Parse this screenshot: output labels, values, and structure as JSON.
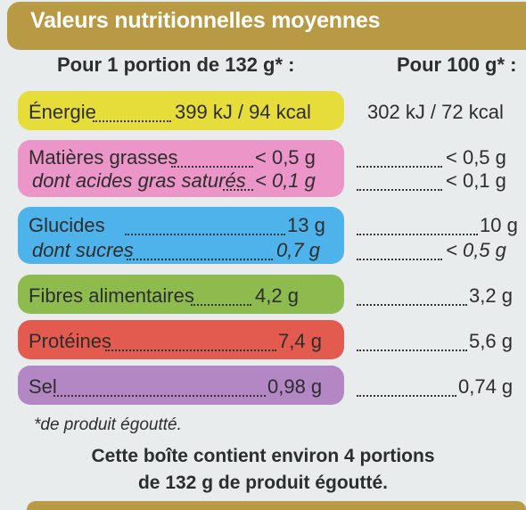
{
  "header": {
    "title": "Valeurs nutritionnelles moyennes"
  },
  "columns": {
    "per_portion": "Pour 1 portion de 132 g* :",
    "per_100g": "Pour 100 g* :"
  },
  "colors": {
    "header": "#b89a45",
    "energie": "#e6dd3a",
    "matieres": "#ec95c9",
    "glucides": "#4eb3ea",
    "fibres": "#8dbb4d",
    "proteines": "#e35a4e",
    "sel": "#b387c4"
  },
  "rows": [
    {
      "label": "Énergie",
      "portion": "399 kJ / 94 kcal",
      "per100": "302 kJ / 72 kcal"
    },
    {
      "label": "Matières grasses",
      "portion": "< 0,5 g",
      "per100": "< 0,5 g"
    },
    {
      "label": "dont acides gras saturés",
      "portion": "< 0,1 g",
      "per100": "< 0,1 g"
    },
    {
      "label": "Glucides",
      "portion": "13 g",
      "per100": "10 g"
    },
    {
      "label": "dont sucres",
      "portion": "0,7 g",
      "per100": "< 0,5 g"
    },
    {
      "label": "Fibres alimentaires",
      "portion": "4,2 g",
      "per100": "3,2 g"
    },
    {
      "label": "Protéines",
      "portion": "7,4 g",
      "per100": "5,6 g"
    },
    {
      "label": "Sel",
      "portion": "0,98 g",
      "per100": "0,74 g"
    }
  ],
  "footnote": "*de produit égoutté.",
  "footer": {
    "line1": "Cette boîte contient environ 4 portions",
    "line2": "de 132 g de produit égoutté."
  }
}
